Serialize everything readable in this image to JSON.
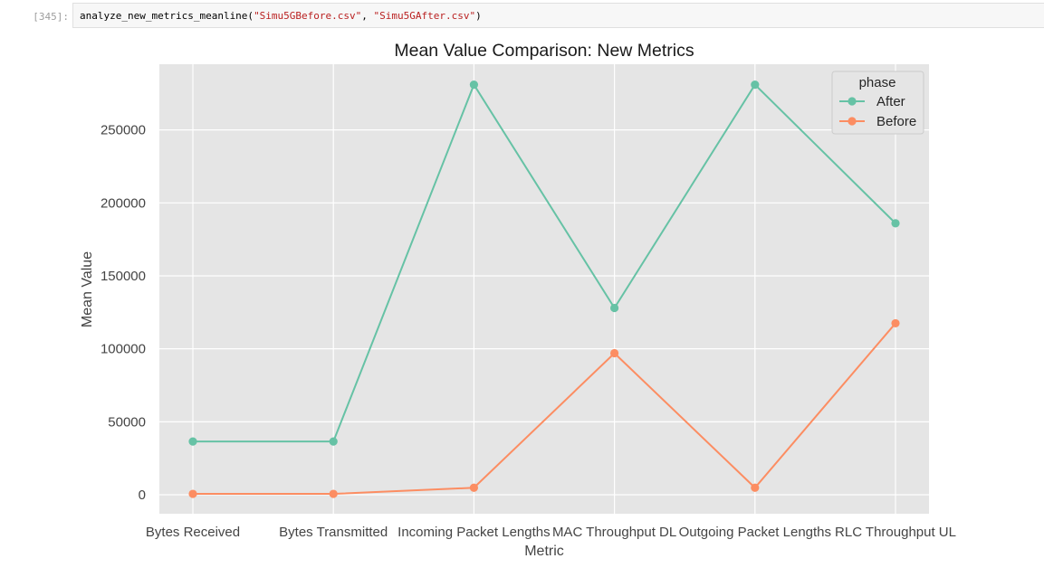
{
  "cell": {
    "prompt": "[345]:",
    "code_prefix": "analyze_new_metrics_meanline(",
    "arg1": "\"Simu5GBefore.csv\"",
    "sep": ", ",
    "arg2": "\"Simu5GAfter.csv\"",
    "code_suffix": ")"
  },
  "chart_data": {
    "type": "line",
    "title": "Mean Value Comparison: New Metrics",
    "xlabel": "Metric",
    "ylabel": "Mean Value",
    "categories": [
      "Bytes Received",
      "Bytes Transmitted",
      "Incoming Packet Lengths",
      "MAC Throughput DL",
      "Outgoing Packet Lengths",
      "RLC Throughput UL"
    ],
    "ylim": [
      -13000,
      295000
    ],
    "yticks": [
      0,
      50000,
      100000,
      150000,
      200000,
      250000
    ],
    "grid": true,
    "legend": {
      "title": "phase",
      "placement": "top-right"
    },
    "series": [
      {
        "name": "After",
        "color": "#66c2a5",
        "values": [
          36500,
          36500,
          281000,
          128000,
          281000,
          186000
        ]
      },
      {
        "name": "Before",
        "color": "#fc8d62",
        "values": [
          600,
          600,
          4800,
          97000,
          4800,
          117500
        ]
      }
    ]
  }
}
